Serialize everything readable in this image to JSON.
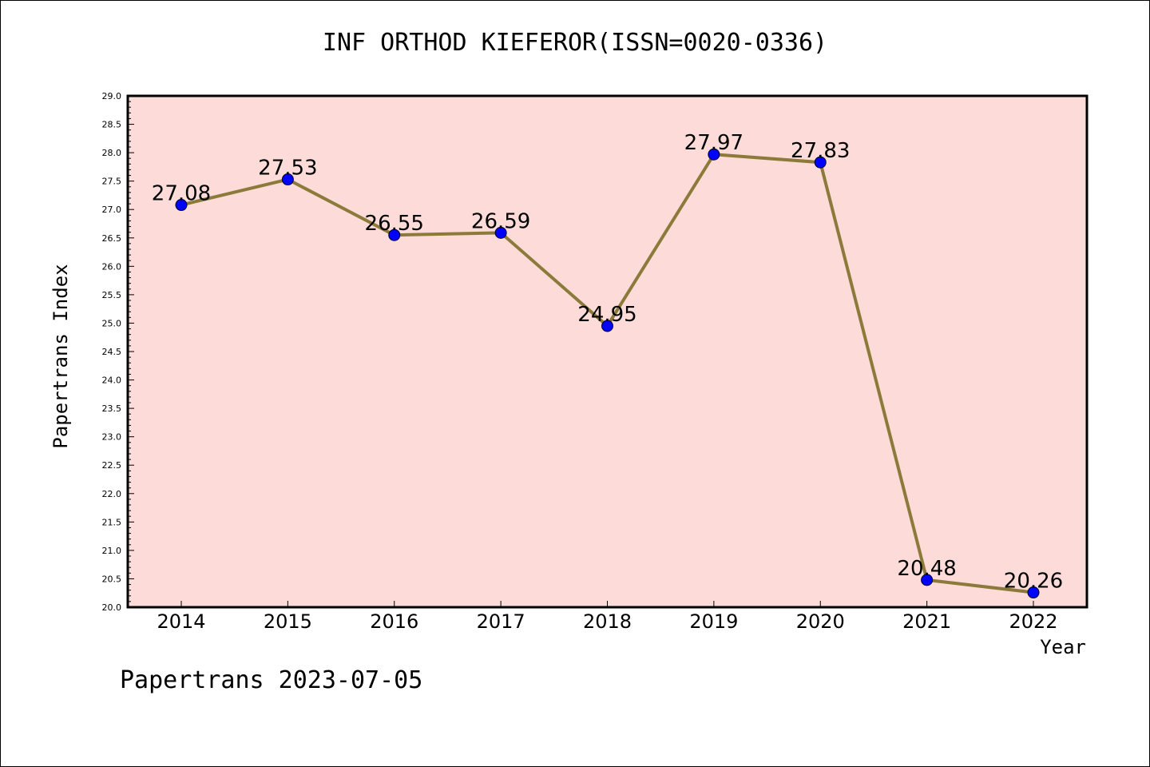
{
  "page": {
    "background": "#ffffff",
    "footer": "Papertrans 2023-07-05"
  },
  "chart_data": {
    "type": "line",
    "title": "INF ORTHOD KIEFEROR(ISSN=0020-0336)",
    "xlabel": "Year",
    "ylabel": "Papertrans Index",
    "x": [
      "2014",
      "2015",
      "2016",
      "2017",
      "2018",
      "2019",
      "2020",
      "2021",
      "2022"
    ],
    "series": [
      {
        "values": [
          27.08,
          27.53,
          26.55,
          26.59,
          24.95,
          27.97,
          27.83,
          20.48,
          20.26
        ]
      }
    ],
    "data_labels": [
      "27.08",
      "27.53",
      "26.55",
      "26.59",
      "24.95",
      "27.97",
      "27.83",
      "20.48",
      "20.26"
    ],
    "ylim": [
      20.0,
      29.0
    ],
    "yticks": [
      "20.0",
      "20.5",
      "21.0",
      "21.5",
      "22.0",
      "22.5",
      "23.0",
      "23.5",
      "24.0",
      "24.5",
      "25.0",
      "25.5",
      "26.0",
      "26.5",
      "27.0",
      "27.5",
      "28.0",
      "28.5",
      "29.0"
    ],
    "grid": false,
    "colors": {
      "plot_background": "#fddbd8",
      "line": "#8b7a3a",
      "marker": "#0000ff"
    }
  }
}
